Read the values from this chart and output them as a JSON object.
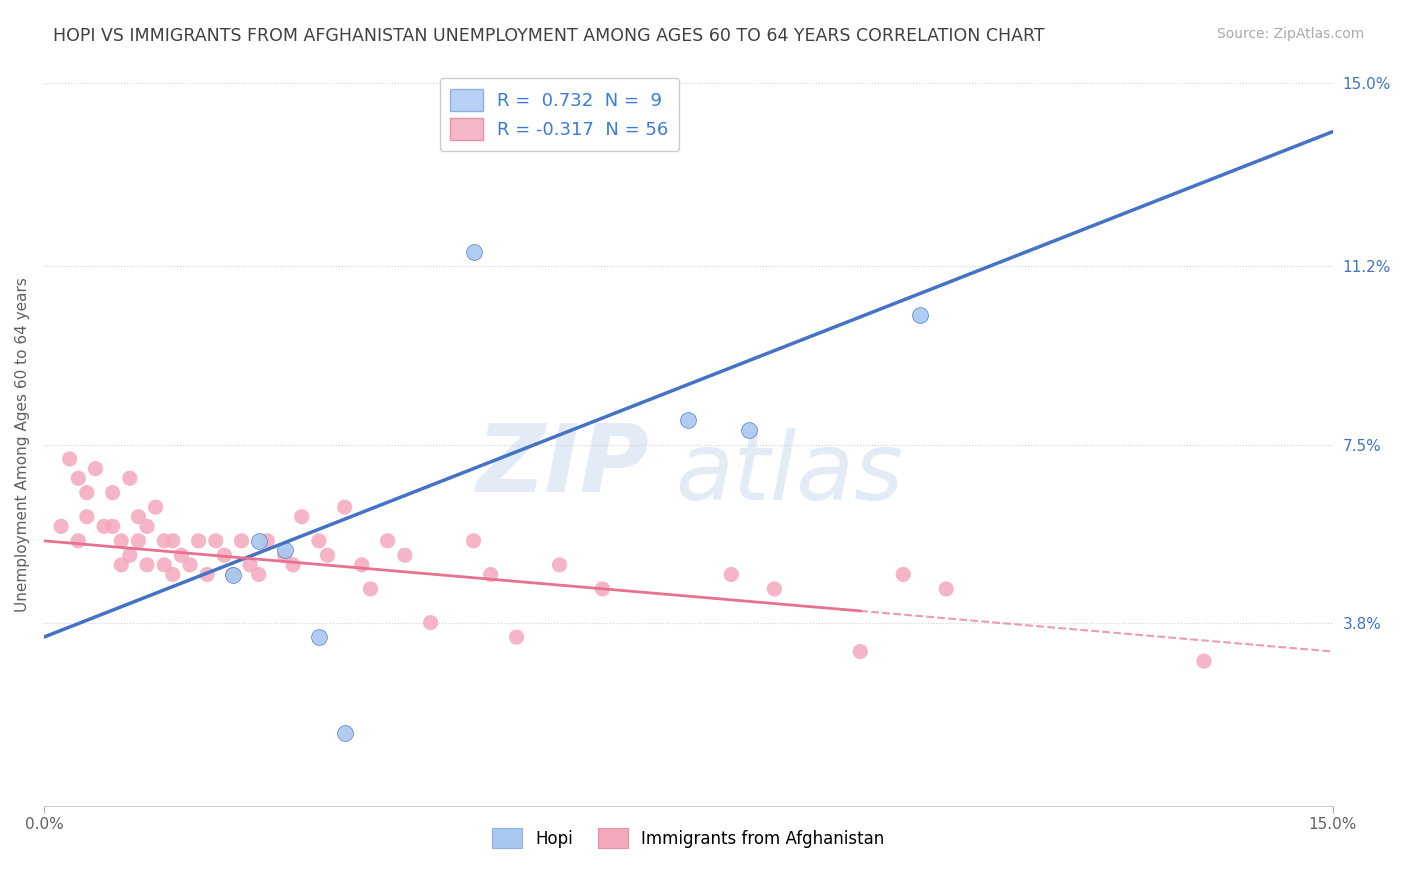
{
  "title": "HOPI VS IMMIGRANTS FROM AFGHANISTAN UNEMPLOYMENT AMONG AGES 60 TO 64 YEARS CORRELATION CHART",
  "source": "Source: ZipAtlas.com",
  "xlabel": "",
  "ylabel": "Unemployment Among Ages 60 to 64 years",
  "xlim": [
    0.0,
    15.0
  ],
  "ylim": [
    0.0,
    15.0
  ],
  "y_tick_values_right": [
    3.8,
    7.5,
    11.2,
    15.0
  ],
  "legend_entries": [
    {
      "label": "R =  0.732  N =  9",
      "color": "#b8d0f5",
      "text_color": "#3a7bd5"
    },
    {
      "label": "R = -0.317  N = 56",
      "color": "#f5b8c8",
      "text_color": "#3a7bd5"
    }
  ],
  "hopi_points": [
    [
      5.0,
      11.5
    ],
    [
      10.2,
      10.2
    ],
    [
      7.5,
      8.0
    ],
    [
      8.2,
      7.8
    ],
    [
      2.5,
      5.5
    ],
    [
      2.8,
      5.3
    ],
    [
      2.2,
      4.8
    ],
    [
      3.2,
      3.5
    ],
    [
      3.5,
      1.5
    ]
  ],
  "afghan_points": [
    [
      0.2,
      5.8
    ],
    [
      0.3,
      7.2
    ],
    [
      0.4,
      6.8
    ],
    [
      0.4,
      5.5
    ],
    [
      0.5,
      6.5
    ],
    [
      0.5,
      6.0
    ],
    [
      0.6,
      7.0
    ],
    [
      0.7,
      5.8
    ],
    [
      0.8,
      6.5
    ],
    [
      0.8,
      5.8
    ],
    [
      0.9,
      5.5
    ],
    [
      0.9,
      5.0
    ],
    [
      1.0,
      6.8
    ],
    [
      1.0,
      5.2
    ],
    [
      1.1,
      6.0
    ],
    [
      1.1,
      5.5
    ],
    [
      1.2,
      5.8
    ],
    [
      1.2,
      5.0
    ],
    [
      1.3,
      6.2
    ],
    [
      1.4,
      5.5
    ],
    [
      1.4,
      5.0
    ],
    [
      1.5,
      5.5
    ],
    [
      1.5,
      4.8
    ],
    [
      1.6,
      5.2
    ],
    [
      1.7,
      5.0
    ],
    [
      1.8,
      5.5
    ],
    [
      1.9,
      4.8
    ],
    [
      2.0,
      5.5
    ],
    [
      2.1,
      5.2
    ],
    [
      2.2,
      4.8
    ],
    [
      2.3,
      5.5
    ],
    [
      2.4,
      5.0
    ],
    [
      2.5,
      4.8
    ],
    [
      2.6,
      5.5
    ],
    [
      2.8,
      5.2
    ],
    [
      2.9,
      5.0
    ],
    [
      3.0,
      6.0
    ],
    [
      3.2,
      5.5
    ],
    [
      3.3,
      5.2
    ],
    [
      3.5,
      6.2
    ],
    [
      3.7,
      5.0
    ],
    [
      3.8,
      4.5
    ],
    [
      4.0,
      5.5
    ],
    [
      4.2,
      5.2
    ],
    [
      4.5,
      3.8
    ],
    [
      5.0,
      5.5
    ],
    [
      5.2,
      4.8
    ],
    [
      5.5,
      3.5
    ],
    [
      6.0,
      5.0
    ],
    [
      6.5,
      4.5
    ],
    [
      8.0,
      4.8
    ],
    [
      8.5,
      4.5
    ],
    [
      9.5,
      3.2
    ],
    [
      10.0,
      4.8
    ],
    [
      10.5,
      4.5
    ],
    [
      13.5,
      3.0
    ]
  ],
  "hopi_color": "#a8c8f0",
  "afghan_color": "#f4a8bc",
  "hopi_line_color": "#4472c4",
  "afghan_line_color": "#e87090",
  "watermark_zip": "ZIP",
  "watermark_atlas": "atlas",
  "background_color": "#ffffff",
  "grid_color": "#d0d0d0",
  "axis_label_color": "#4472c4",
  "title_color": "#404040",
  "title_fontsize": 12.5,
  "source_fontsize": 10
}
